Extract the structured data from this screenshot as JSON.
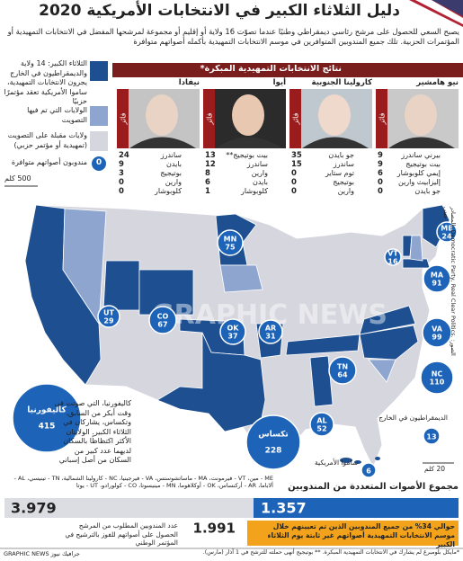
{
  "header": {
    "title": "دليل الثلاثاء الكبير في الانتخابات الأمريكية 2020",
    "intro": "يصبح السعي للحصول على مرشح رئاسي ديمقراطي وطنيًا عندما تصوّت 16 ولاية أو إقليم أو مجموعة لمرشحها المفضل في الانتخابات التمهيدية أو المؤتمرات الحزبية. تلك جميع المندوبين المتوافرين في موسم الانتخابات التمهيدية بأكمله أصواتهم متوافرة"
  },
  "legend": {
    "super_tuesday": "الثلاثاء الكبير: 14 ولاية والديمقراطيون في الخارج يجرون الانتخابات التمهيدية، ساموا الأمريكية تعقد مؤتمرًا حزبيًا",
    "voted": "الولايات التي تم فيها التصويت",
    "upcoming": "ولايات مقبلة على التصويت (تمهيدية أو مؤتمر حزبي)",
    "delegates_sample": "0",
    "delegates_label": "مندوبون أصواتهم متوافرة",
    "scale": "500 كلم"
  },
  "early_results": {
    "title": "نتائج الانتخابات التمهيدية المبكرة*",
    "winner_label": "فائز",
    "states": [
      {
        "name": "نيو هامشير",
        "results": [
          {
            "votes": 9,
            "name": "بيرني ساندرز"
          },
          {
            "votes": 9,
            "name": "بيت بوتيجيج"
          },
          {
            "votes": 6,
            "name": "إيمي كلوبوشار"
          },
          {
            "votes": 0,
            "name": "إليزابيث وارين"
          },
          {
            "votes": 0,
            "name": "جو بايدن"
          }
        ]
      },
      {
        "name": "كارولينا الجنوبية",
        "results": [
          {
            "votes": 35,
            "name": "جو بايدن"
          },
          {
            "votes": 15,
            "name": "ساندرز"
          },
          {
            "votes": 0,
            "name": "توم ستاير"
          },
          {
            "votes": 0,
            "name": "بوتيجيج"
          },
          {
            "votes": 0,
            "name": "وارين"
          }
        ]
      },
      {
        "name": "أيوا",
        "results": [
          {
            "votes": 13,
            "name": "بيت بوتيجيج**"
          },
          {
            "votes": 12,
            "name": "ساندرز"
          },
          {
            "votes": 8,
            "name": "وارين"
          },
          {
            "votes": 6,
            "name": "بايدن"
          },
          {
            "votes": 1,
            "name": "كلوبوشار"
          }
        ]
      },
      {
        "name": "نيفادا",
        "results": [
          {
            "votes": 24,
            "name": "ساندرز"
          },
          {
            "votes": 9,
            "name": "بايدن"
          },
          {
            "votes": 3,
            "name": "بوتيجيج"
          },
          {
            "votes": 0,
            "name": "وارين"
          },
          {
            "votes": 0,
            "name": "كلوبوشار"
          }
        ]
      }
    ]
  },
  "map": {
    "states": [
      {
        "label": "ME",
        "delegates": 24
      },
      {
        "label": "VT",
        "delegates": 16
      },
      {
        "label": "MA",
        "delegates": 91
      },
      {
        "label": "VA",
        "delegates": 99
      },
      {
        "label": "NC",
        "delegates": 110
      },
      {
        "label": "TN",
        "delegates": 64
      },
      {
        "label": "AL",
        "delegates": 52
      },
      {
        "label": "AR",
        "delegates": 31
      },
      {
        "label": "OK",
        "delegates": 37
      },
      {
        "label": "CO",
        "delegates": 67
      },
      {
        "label": "UT",
        "delegates": 29
      },
      {
        "label": "MN",
        "delegates": 75
      },
      {
        "label": "تكساس",
        "delegates": 228
      },
      {
        "label": "كاليفورنيا",
        "delegates": 415
      },
      {
        "label": "الديمقراطيون في الخارج",
        "delegates": 13
      },
      {
        "label": "ساموا الأمريكية",
        "delegates": 6
      }
    ],
    "samoa_scale": "20 كلم",
    "note": "كاليفورنيا، التي صوتت في وقت أبكر من السابق، وتكساس، يشاركان في الثلاثاء الكبير. الولايتان الأكثر اكتظاظًا بالسكان لديهما عدد كبير من السكان من أصل إسباني",
    "abbreviations": "ME - مين، VT - فيرمونت، MA - ماساتشوستس، VA - فيرجينيا، NC - كارولينا الشمالية، TN - تينيسي، AL - ألاباما، AR - أركنساس، OK - أوكلاهوما، MN - مينيسوتا، CO - كولورادو، UT - يوتا",
    "source": "المصادر: Democratic Party, Real Clear Politics. الصور: جيتي",
    "watermark": "GRAPHIC NEWS"
  },
  "totals": {
    "title": "مجموع الأصوات المتعددة من المندوبين",
    "total": "3.979",
    "awarded": "1.357",
    "needed": "1.991",
    "needed_label": "عدد المندوبين المطلوب من المرشح الحصول على أصواتهم للفوز بالترشيح في المؤتمر الوطني",
    "note": "حوالي 34% من جميع المندوبين الذين تم تعيينهم خلال موسم الانتخابات التمهيدية أصواتهم غير ثابتة يوم الثلاثاء الكبير"
  },
  "footer": {
    "footnote": "*مايكل بلومبرغ لم يشارك في الانتخابات التمهيدية المبكرة. ** بوتيجيج أنهى حملته للترشح في 1 آذار (مارس).",
    "credit": "GRAPHIC NEWS جرافيك نيوز"
  }
}
